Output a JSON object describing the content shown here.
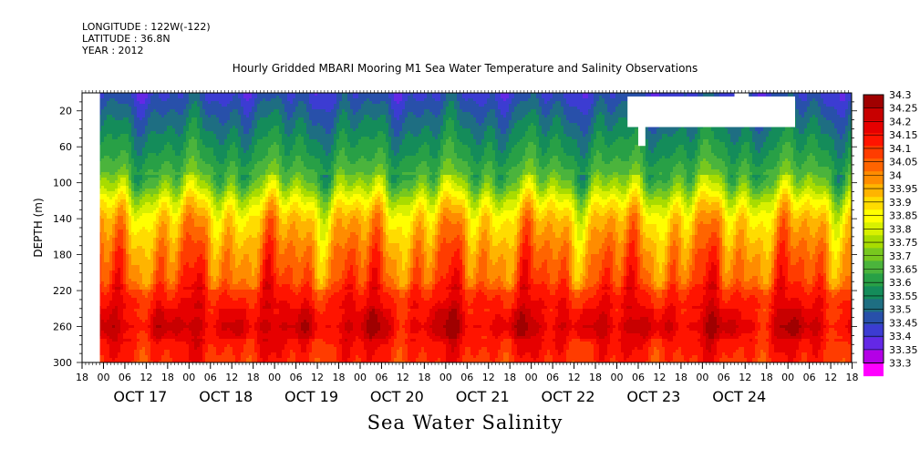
{
  "header": {
    "longitude": "LONGITUDE : 122W(-122)",
    "latitude": "LATITUDE : 36.8N",
    "year": "YEAR : 2012"
  },
  "chart_data": {
    "type": "heatmap",
    "title": "Hourly Gridded MBARI Mooring M1 Sea Water Temperature and Salinity Observations",
    "xlabel": "Sea Water Salinity",
    "ylabel": "DEPTH (m)",
    "ylim": [
      300,
      0
    ],
    "y_ticks": [
      20,
      60,
      100,
      140,
      180,
      220,
      260,
      300
    ],
    "x_hour_ticks": [
      "18",
      "00",
      "06",
      "12",
      "18",
      "00",
      "06",
      "12",
      "18",
      "00",
      "06",
      "12",
      "18",
      "00",
      "06",
      "12",
      "18",
      "00",
      "06",
      "12",
      "18",
      "00",
      "06",
      "12",
      "18",
      "00",
      "06",
      "12",
      "18",
      "00",
      "06",
      "12",
      "18",
      "00",
      "06",
      "12",
      "18"
    ],
    "x_day_labels": [
      "OCT 17",
      "OCT 18",
      "OCT 19",
      "OCT 20",
      "OCT 21",
      "OCT 22",
      "OCT 23",
      "OCT 24"
    ],
    "colorbar_levels": [
      "34.3",
      "34.25",
      "34.2",
      "34.15",
      "34.1",
      "34.05",
      "34",
      "33.95",
      "33.9",
      "33.85",
      "33.8",
      "33.75",
      "33.7",
      "33.65",
      "33.6",
      "33.55",
      "33.5",
      "33.45",
      "33.4",
      "33.35",
      "33.3"
    ],
    "colorbar_colors": [
      "#a00000",
      "#c80000",
      "#e60000",
      "#ff1400",
      "#ff3c00",
      "#ff6400",
      "#ff8c00",
      "#ffb400",
      "#ffdc00",
      "#ffff00",
      "#d8f000",
      "#a8dc00",
      "#78c81e",
      "#4bb43c",
      "#28a046",
      "#148c5a",
      "#1e6e82",
      "#2850aa",
      "#3c3cd2",
      "#6428e6",
      "#b400e6",
      "#ff00ff"
    ],
    "profile": {
      "depth_m": [
        4,
        20,
        40,
        60,
        70,
        80,
        90,
        100,
        110,
        120,
        130,
        140,
        160,
        180,
        200,
        210,
        220,
        240,
        250,
        260,
        270,
        280,
        300
      ],
      "salinity": [
        33.45,
        33.5,
        33.55,
        33.6,
        33.62,
        33.65,
        33.68,
        33.72,
        33.78,
        33.85,
        33.9,
        33.95,
        34.0,
        34.05,
        34.08,
        34.1,
        34.15,
        34.2,
        34.22,
        34.25,
        34.22,
        34.18,
        34.15
      ]
    },
    "missing_data": [
      {
        "from_hour": 0,
        "to_hour": 5,
        "depth_from": 0,
        "depth_to": 300
      },
      {
        "from_hour": 153,
        "to_hour": 200,
        "depth_from": 4,
        "depth_to": 38
      },
      {
        "from_hour": 156,
        "to_hour": 158,
        "depth_from": 38,
        "depth_to": 59
      },
      {
        "from_hour": 183,
        "to_hour": 187,
        "depth_from": 0,
        "depth_to": 8
      }
    ]
  }
}
